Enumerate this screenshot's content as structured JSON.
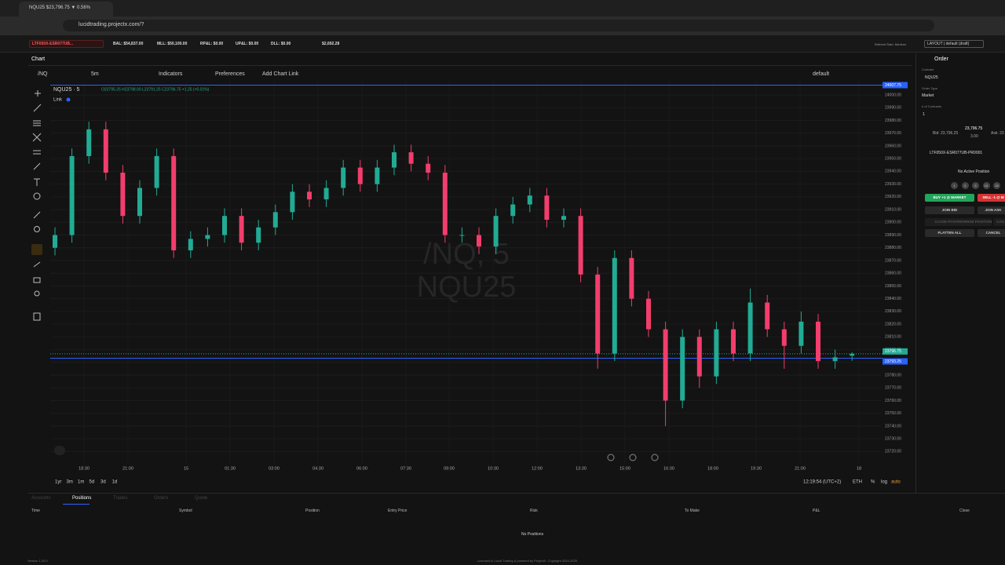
{
  "browser": {
    "tab_title": "NQU25 $23,796.75 ▼ 0.56%",
    "url": "lucidtrading.projectx.com/?"
  },
  "account_bar": {
    "account": "LTF050X-ESR077UB...",
    "items": [
      "BAL: $54,837.00",
      "MLL: $50,100.00",
      "RP&L: $0.00",
      "UP&L: $0.00",
      "DLL: $0.00",
      "$2,692.28"
    ],
    "refresh": "Refresh Rate: Medium",
    "layout": "LAYOUT | default (draft)"
  },
  "toolbar": {
    "tab": "Chart",
    "symbol": "/NQ",
    "interval": "5m",
    "indicators": "Indicators",
    "preferences": "Preferences",
    "add_link": "Add Chart Link",
    "layout_name": "default"
  },
  "chart_data": {
    "type": "candlestick",
    "legend_symbol": "NQU25 · 5",
    "ohlc_text": "O23795.25 H23798.00 L23791.25 C23796.75 +1.25 (+0.01%)",
    "link": "Link",
    "watermark": [
      "/NQ, 5",
      "NQU25"
    ],
    "up_color": "#22ab94",
    "down_color": "#f23d6d",
    "open": [
      23880,
      23890,
      23952,
      23973,
      23939,
      23905,
      23927,
      23952,
      23878,
      23887,
      23890,
      23905,
      23884,
      23896,
      23908,
      23924,
      23918,
      23927,
      23943,
      23930,
      23943,
      23955,
      23946,
      23939,
      23890,
      23890,
      23881,
      23905,
      23914,
      23921,
      23902,
      23905,
      23859,
      23797,
      23872,
      23840,
      23816,
      23760,
      23810,
      23779,
      23816,
      23797,
      23837,
      23816,
      23803,
      23822,
      23791,
      23795.25
    ],
    "high": [
      23896,
      23958,
      23979,
      23979,
      23945,
      23933,
      23958,
      23958,
      23893,
      23896,
      23911,
      23911,
      23902,
      23914,
      23930,
      23930,
      23933,
      23949,
      23949,
      23949,
      23961,
      23961,
      23952,
      23945,
      23896,
      23896,
      23911,
      23920,
      23927,
      23927,
      23911,
      23911,
      23865,
      23878,
      23878,
      23846,
      23822,
      23816,
      23816,
      23822,
      23822,
      23848,
      23843,
      23822,
      23830,
      23828,
      23800,
      23798
    ],
    "low": [
      23874,
      23884,
      23946,
      23933,
      23899,
      23899,
      23921,
      23872,
      23872,
      23881,
      23884,
      23878,
      23878,
      23890,
      23902,
      23912,
      23912,
      23921,
      23924,
      23924,
      23937,
      23940,
      23933,
      23884,
      23884,
      23875,
      23875,
      23899,
      23908,
      23896,
      23896,
      23853,
      23785,
      23791,
      23834,
      23810,
      23740,
      23754,
      23770,
      23773,
      23791,
      23791,
      23810,
      23785,
      23797,
      23785,
      23785,
      23791.25
    ],
    "close": [
      23890,
      23952,
      23973,
      23939,
      23905,
      23927,
      23952,
      23878,
      23887,
      23890,
      23905,
      23884,
      23896,
      23908,
      23924,
      23918,
      23927,
      23943,
      23930,
      23943,
      23955,
      23946,
      23939,
      23890,
      23890,
      23881,
      23905,
      23914,
      23921,
      23902,
      23905,
      23859,
      23797,
      23872,
      23840,
      23816,
      23760,
      23810,
      23779,
      23816,
      23797,
      23837,
      23816,
      23803,
      23822,
      23791,
      23794,
      23796.75
    ],
    "ylim": [
      23711,
      24010.5
    ],
    "yticks": [
      {
        "value": 24000,
        "label": "24000.00"
      },
      {
        "value": 23990,
        "label": "23990.00"
      },
      {
        "value": 23980,
        "label": "23980.00"
      },
      {
        "value": 23970,
        "label": "23970.00"
      },
      {
        "value": 23960,
        "label": "23960.00"
      },
      {
        "value": 23950,
        "label": "23950.00"
      },
      {
        "value": 23940,
        "label": "23940.00"
      },
      {
        "value": 23930,
        "label": "23930.00"
      },
      {
        "value": 23920,
        "label": "23920.00"
      },
      {
        "value": 23910,
        "label": "23910.00"
      },
      {
        "value": 23900,
        "label": "23900.00"
      },
      {
        "value": 23890,
        "label": "23890.00"
      },
      {
        "value": 23880,
        "label": "23880.00"
      },
      {
        "value": 23870,
        "label": "23870.00"
      },
      {
        "value": 23860,
        "label": "23860.00"
      },
      {
        "value": 23850,
        "label": "23850.00"
      },
      {
        "value": 23840,
        "label": "23840.00"
      },
      {
        "value": 23830,
        "label": "23830.00"
      },
      {
        "value": 23820,
        "label": "23820.00"
      },
      {
        "value": 23810,
        "label": "23810.00"
      },
      {
        "value": 23800,
        "label": "23800.00"
      },
      {
        "value": 23790,
        "label": "23790.00"
      },
      {
        "value": 23780,
        "label": "23780.00"
      },
      {
        "value": 23770,
        "label": "23770.00"
      },
      {
        "value": 23760,
        "label": "23760.00"
      },
      {
        "value": 23750,
        "label": "23750.00"
      },
      {
        "value": 23740,
        "label": "23740.00"
      },
      {
        "value": 23730,
        "label": "23730.00"
      },
      {
        "value": 23720,
        "label": "23720.00"
      }
    ],
    "price_lines": [
      {
        "value": 24007.75,
        "color": "#2962ff"
      },
      {
        "value": 23796.75,
        "color": "#22ab94"
      },
      {
        "value": 23793.25,
        "color": "#2962ff"
      }
    ],
    "xtick_labels": [
      "18:30",
      "21:00",
      "15",
      "01:30",
      "03:00",
      "04:30",
      "06:00",
      "07:30",
      "09:00",
      "10:30",
      "12:00",
      "13:30",
      "15:00",
      "16:30",
      "18:00",
      "19:30",
      "21:00",
      "18"
    ],
    "grid": true,
    "ranges": [
      "1yr",
      "3m",
      "1m",
      "5d",
      "3d",
      "1d"
    ],
    "clock": "12:19:54 (UTC+2)",
    "session": "ETH",
    "scale_options": [
      "%",
      "log",
      "auto"
    ]
  },
  "order_panel": {
    "title": "Order",
    "contract_label": "Contract",
    "contract": "NQU25",
    "type_label": "Order Type",
    "type": "Market",
    "qty_label": "# of Contracts",
    "qty": "1",
    "bid": "Bid: 23,796.25",
    "last": "23,796.75",
    "spread": "3.00",
    "ask": "Ask: 23",
    "account": "LTF050X-ESR077UB-PR0001",
    "status": "No Active Position",
    "sizes": [
      "1",
      "3",
      "5",
      "10",
      "15"
    ],
    "buy": "BUY +1 @ MARKET",
    "sell": "SELL -1 @ M",
    "join_bid": "JOIN BID",
    "join_ask": "JOIN ASK",
    "close": "CLOSE POSITION",
    "reverse": "REVERSE POSITION",
    "cancel_short": "CAN",
    "flatten": "FLATTEN ALL",
    "cancel": "CANCEL"
  },
  "positions": {
    "tabs": [
      "Accounts",
      "Positions",
      "Trades",
      "Orders",
      "Quote"
    ],
    "columns": [
      "Time",
      "Symbol",
      "Position",
      "Entry Price",
      "Risk",
      "To Make",
      "P&L",
      "Close"
    ],
    "empty": "No Positions"
  },
  "footer": {
    "version": "Version 1.20.0",
    "credit": "Licensed to Lucid Trading & powered by ProjectX. Copyright 2024-2025"
  }
}
